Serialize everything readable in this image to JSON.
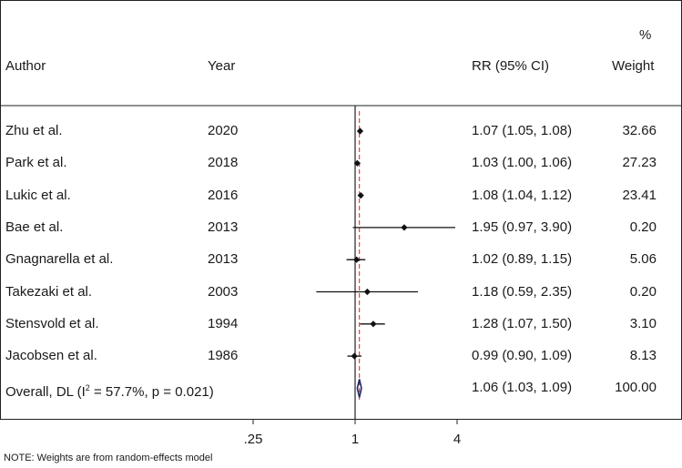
{
  "headers": {
    "author": "Author",
    "year": "Year",
    "rr": "RR (95% CI)",
    "weight_pct": "%",
    "weight": "Weight"
  },
  "chart_data": {
    "type": "forest",
    "x_scale": "log",
    "x_ticks": [
      0.25,
      1,
      4
    ],
    "x_tick_labels": [
      ".25",
      "1",
      "4"
    ],
    "null_line": 1,
    "overall_line": 1.06,
    "studies": [
      {
        "author": "Zhu et al.",
        "year": "2020",
        "rr": 1.07,
        "lo": 1.05,
        "hi": 1.08,
        "ci_text": "1.07 (1.05, 1.08)",
        "weight": "32.66"
      },
      {
        "author": "Park et al.",
        "year": "2018",
        "rr": 1.03,
        "lo": 1.0,
        "hi": 1.06,
        "ci_text": "1.03 (1.00, 1.06)",
        "weight": "27.23"
      },
      {
        "author": "Lukic et al.",
        "year": "2016",
        "rr": 1.08,
        "lo": 1.04,
        "hi": 1.12,
        "ci_text": "1.08 (1.04, 1.12)",
        "weight": "23.41"
      },
      {
        "author": "Bae et al.",
        "year": "2013",
        "rr": 1.95,
        "lo": 0.97,
        "hi": 3.9,
        "ci_text": "1.95 (0.97, 3.90)",
        "weight": "0.20"
      },
      {
        "author": "Gnagnarella et al.",
        "year": "2013",
        "rr": 1.02,
        "lo": 0.89,
        "hi": 1.15,
        "ci_text": "1.02 (0.89, 1.15)",
        "weight": "5.06"
      },
      {
        "author": "Takezaki et al.",
        "year": "2003",
        "rr": 1.18,
        "lo": 0.59,
        "hi": 2.35,
        "ci_text": "1.18 (0.59, 2.35)",
        "weight": "0.20"
      },
      {
        "author": "Stensvold et al.",
        "year": "1994",
        "rr": 1.28,
        "lo": 1.07,
        "hi": 1.5,
        "ci_text": "1.28 (1.07, 1.50)",
        "weight": "3.10"
      },
      {
        "author": "Jacobsen et al.",
        "year": "1986",
        "rr": 0.99,
        "lo": 0.9,
        "hi": 1.09,
        "ci_text": "0.99 (0.90, 1.09)",
        "weight": "8.13"
      }
    ],
    "overall": {
      "label_pre": "Overall, DL (I",
      "label_sup": "2",
      "label_post": " = 57.7%, p = 0.021)",
      "rr": 1.06,
      "lo": 1.03,
      "hi": 1.09,
      "ci_text": "1.06 (1.03, 1.09)",
      "weight": "100.00"
    },
    "colors": {
      "marker": "#111111",
      "ci_line": "#111111",
      "null_line": "#222222",
      "overall_line": "#b0303a",
      "diamond": "#1f2a6b"
    }
  },
  "note": "NOTE: Weights are from random-effects model"
}
